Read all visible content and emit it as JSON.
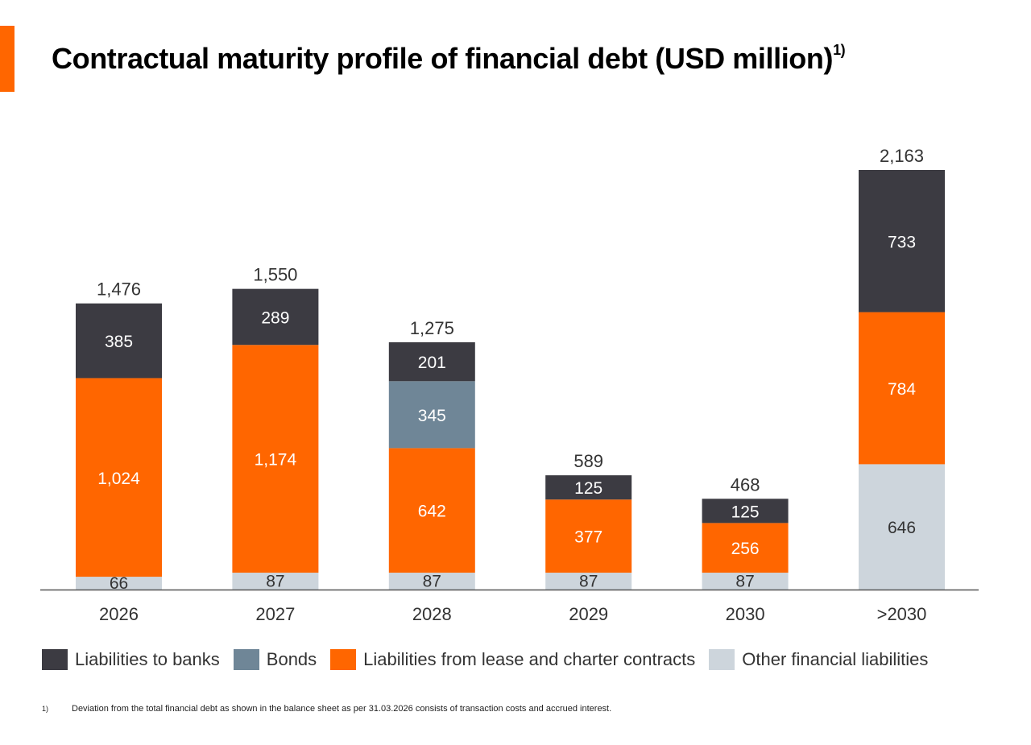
{
  "header": {
    "title": "Contractual maturity profile of financial debt (USD million)",
    "title_superscript": "1)"
  },
  "colors": {
    "accent": "#ff6600",
    "liabilities_to_banks": "#3c3b42",
    "bonds": "#6f8697",
    "lease_and_charter": "#ff6600",
    "other_financial": "#cdd5dc",
    "axis": "#555555"
  },
  "chart_data": {
    "type": "bar",
    "stacked": true,
    "categories": [
      "2026",
      "2027",
      "2028",
      "2029",
      "2030",
      ">2030"
    ],
    "series": [
      {
        "name": "Other financial liabilities",
        "color": "#cdd5dc",
        "label_color": "#333333",
        "values": [
          66,
          87,
          87,
          87,
          87,
          646
        ],
        "labels": [
          "66",
          "87",
          "87",
          "87",
          "87",
          "646"
        ]
      },
      {
        "name": "Liabilities from lease and charter contracts",
        "color": "#ff6600",
        "label_color": "#ffffff",
        "values": [
          1024,
          1174,
          642,
          377,
          256,
          784
        ],
        "labels": [
          "1,024",
          "1,174",
          "642",
          "377",
          "256",
          "784"
        ]
      },
      {
        "name": "Bonds",
        "color": "#6f8697",
        "label_color": "#ffffff",
        "values": [
          0,
          0,
          345,
          0,
          0,
          0
        ],
        "labels": [
          "",
          "",
          "345",
          "",
          "",
          ""
        ]
      },
      {
        "name": "Liabilities to banks",
        "color": "#3c3b42",
        "label_color": "#ffffff",
        "values": [
          385,
          289,
          201,
          125,
          125,
          733
        ],
        "labels": [
          "385",
          "289",
          "201",
          "125",
          "125",
          "733"
        ]
      }
    ],
    "totals": [
      1476,
      1550,
      1275,
      589,
      468,
      2163
    ],
    "total_labels": [
      "1,476",
      "1,550",
      "1,275",
      "589",
      "468",
      "2,163"
    ],
    "ylim": [
      0,
      2163
    ],
    "grid": false,
    "legend_position": "bottom",
    "title": "",
    "xlabel": "",
    "ylabel": ""
  },
  "legend": {
    "items": [
      {
        "label": "Liabilities to banks",
        "color": "#3c3b42"
      },
      {
        "label": "Bonds",
        "color": "#6f8697"
      },
      {
        "label": "Liabilities from lease and charter contracts",
        "color": "#ff6600"
      },
      {
        "label": "Other financial liabilities",
        "color": "#cdd5dc"
      }
    ]
  },
  "footnote": {
    "marker": "1)",
    "text": "Deviation from the total financial debt as shown in the balance sheet as per 31.03.2026 consists of transaction costs and accrued interest."
  }
}
